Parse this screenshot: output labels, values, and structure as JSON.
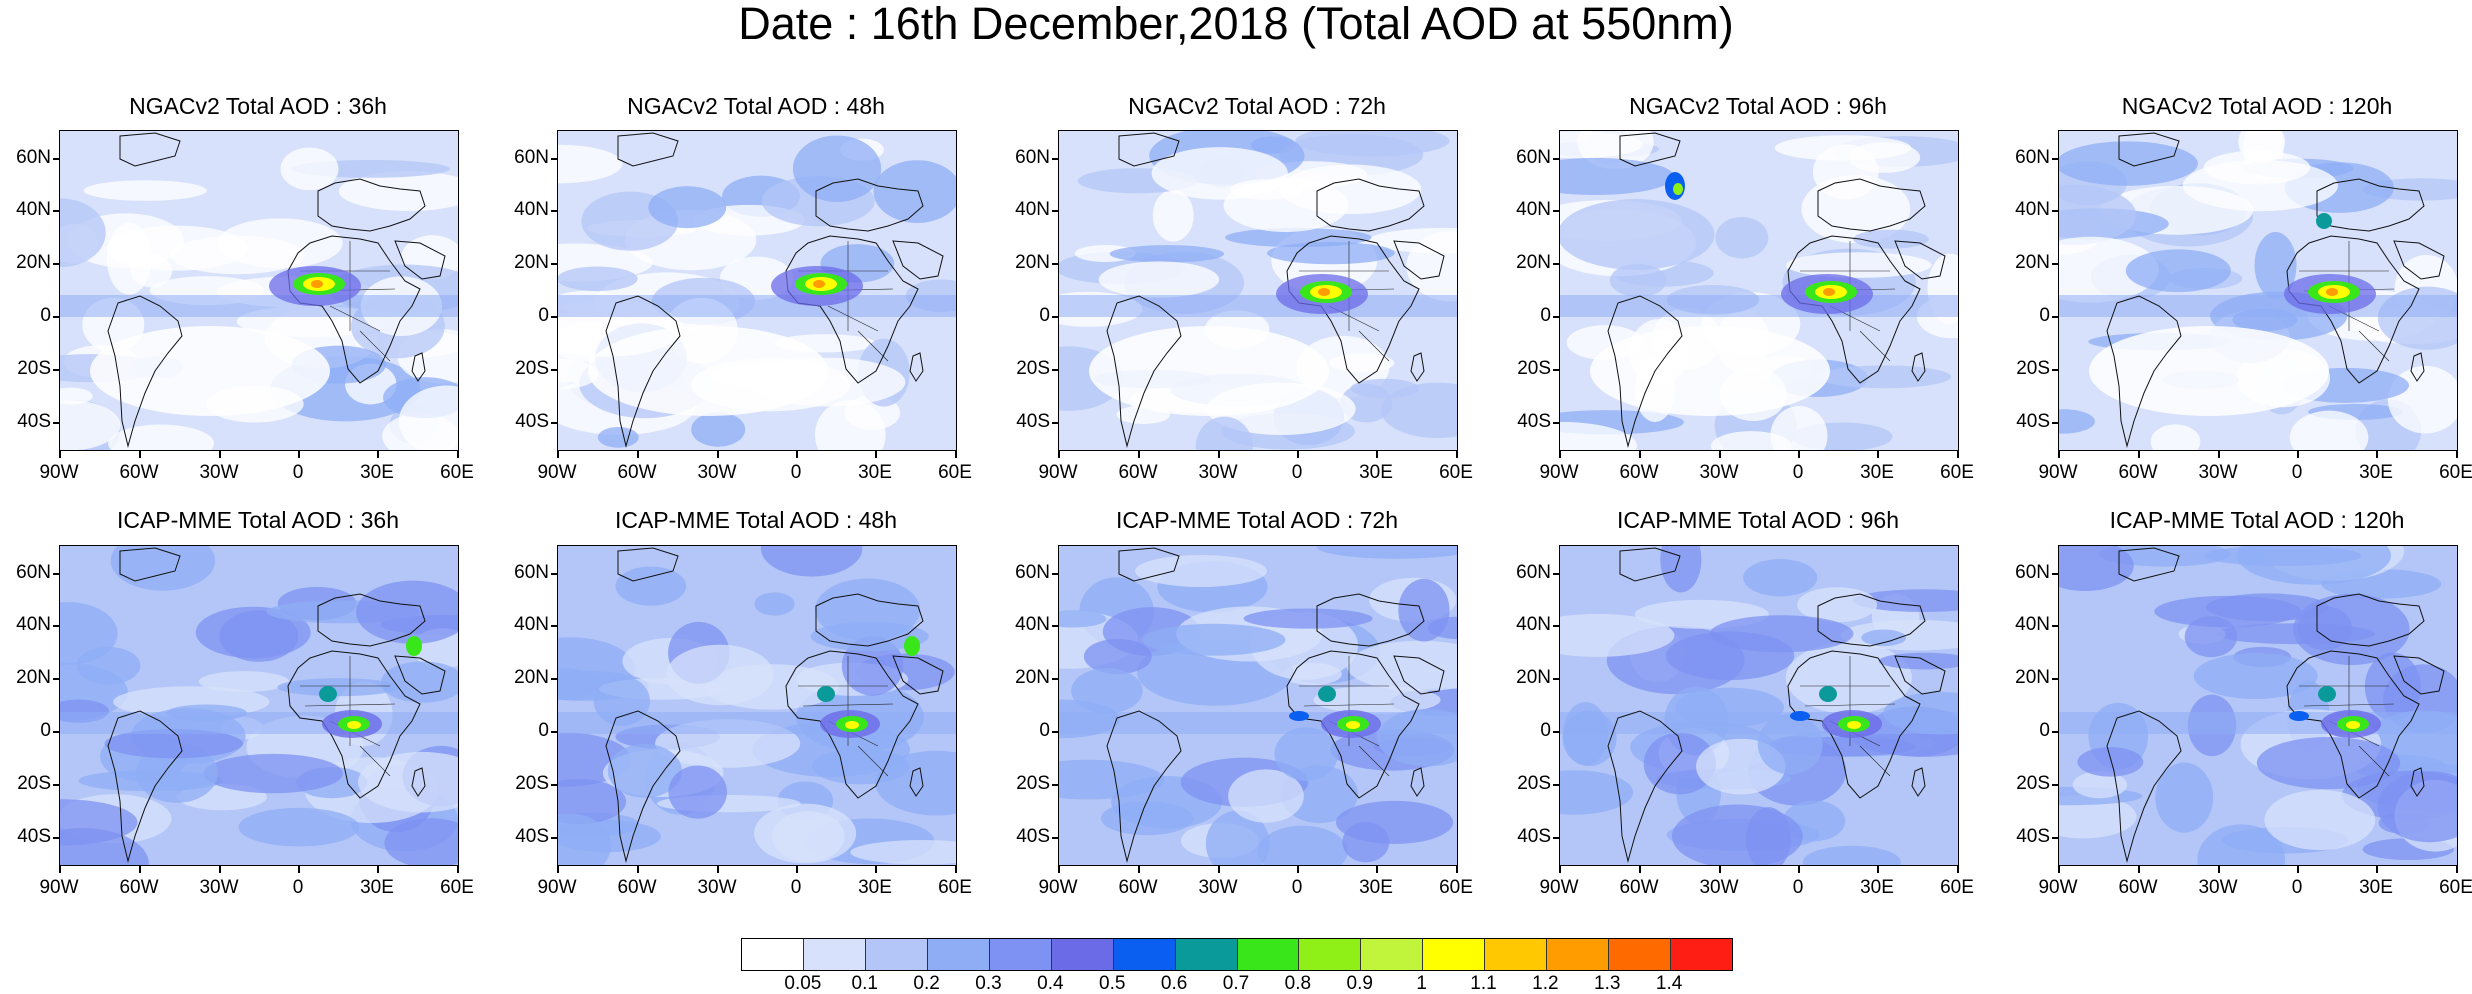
{
  "figure": {
    "title": "Date : 16th December,2018 (Total AOD at 550nm)"
  },
  "map_data": {
    "type": "map-panel-grid",
    "domain": "Atlantic / Africa / Europe",
    "lon_ticks": [
      "90W",
      "60W",
      "30W",
      "0",
      "30E",
      "60E"
    ],
    "lat_ticks": [
      "60N",
      "40N",
      "20N",
      "0",
      "20S",
      "40S"
    ],
    "rows": [
      {
        "model": "NGACv2",
        "panels": [
          {
            "title": "NGACv2 Total AOD : 36h"
          },
          {
            "title": "NGACv2 Total AOD : 48h"
          },
          {
            "title": "NGACv2 Total AOD : 72h"
          },
          {
            "title": "NGACv2 Total AOD : 96h"
          },
          {
            "title": "NGACv2 Total AOD : 120h"
          }
        ]
      },
      {
        "model": "ICAP-MME",
        "panels": [
          {
            "title": "ICAP-MME Total AOD : 36h"
          },
          {
            "title": "ICAP-MME Total AOD : 48h"
          },
          {
            "title": "ICAP-MME Total AOD : 72h"
          },
          {
            "title": "ICAP-MME Total AOD : 96h"
          },
          {
            "title": "ICAP-MME Total AOD : 120h"
          }
        ]
      }
    ]
  },
  "colorbar": {
    "colors": [
      "#ffffff",
      "#d7e1fb",
      "#b3c6f7",
      "#8fadf5",
      "#7d92f2",
      "#6b6be8",
      "#0a5ef0",
      "#0a9a9a",
      "#39e61a",
      "#8ef016",
      "#c0f53c",
      "#ffff00",
      "#ffc800",
      "#ff9c00",
      "#ff6a00",
      "#ff1e14"
    ],
    "labels": [
      "0.05",
      "0.1",
      "0.2",
      "0.3",
      "0.4",
      "0.5",
      "0.6",
      "0.7",
      "0.8",
      "0.9",
      "1",
      "1.1",
      "1.2",
      "1.3",
      "1.4"
    ]
  }
}
